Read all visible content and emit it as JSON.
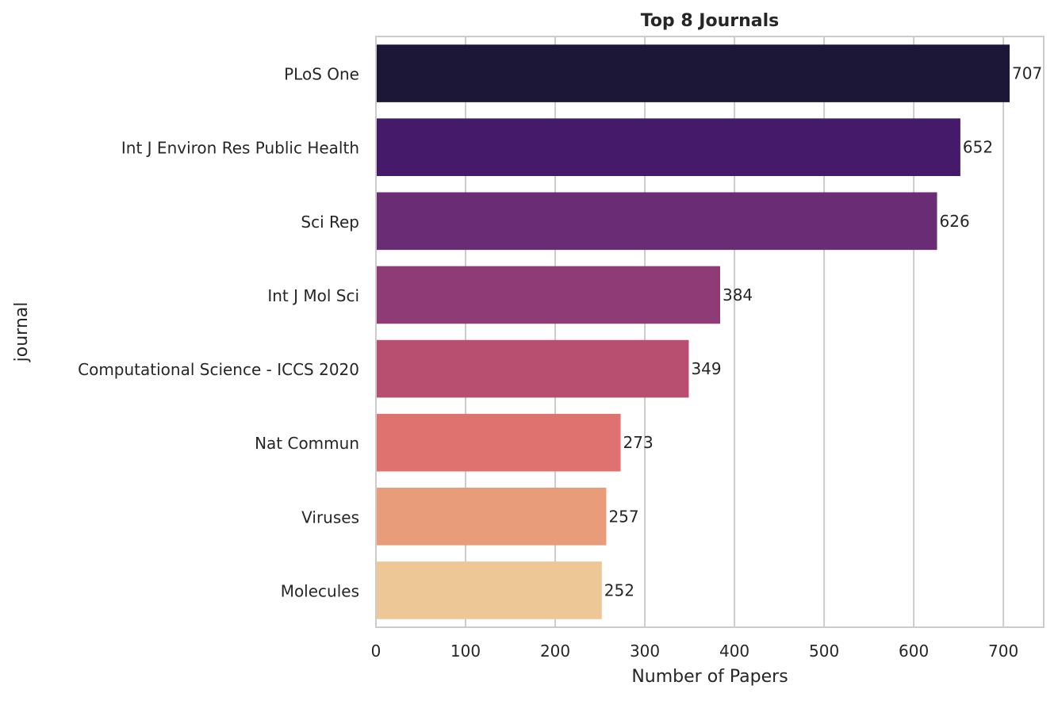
{
  "chart_data": {
    "type": "bar",
    "orientation": "horizontal",
    "title": "Top 8 Journals",
    "xlabel": "Number of Papers",
    "ylabel": "journal",
    "categories": [
      "PLoS One",
      "Int J Environ Res Public Health",
      "Sci Rep",
      "Int J Mol Sci",
      "Computational Science - ICCS 2020",
      "Nat Commun",
      "Viruses",
      "Molecules"
    ],
    "values": [
      707,
      652,
      626,
      384,
      349,
      273,
      257,
      252
    ],
    "data_labels": [
      "707",
      "652",
      "626",
      "384",
      "349",
      "273",
      "257",
      "252"
    ],
    "colors": [
      "#1c1637",
      "#451a6b",
      "#6a2c74",
      "#8f3b76",
      "#b94f70",
      "#df716e",
      "#e89c79",
      "#eec796"
    ],
    "xlim": [
      0,
      745
    ],
    "xticks": [
      0,
      100,
      200,
      300,
      400,
      500,
      600,
      700
    ],
    "xtick_labels": [
      "0",
      "100",
      "200",
      "300",
      "400",
      "500",
      "600",
      "700"
    ],
    "grid": true,
    "legend": "none",
    "palette": "magma"
  }
}
